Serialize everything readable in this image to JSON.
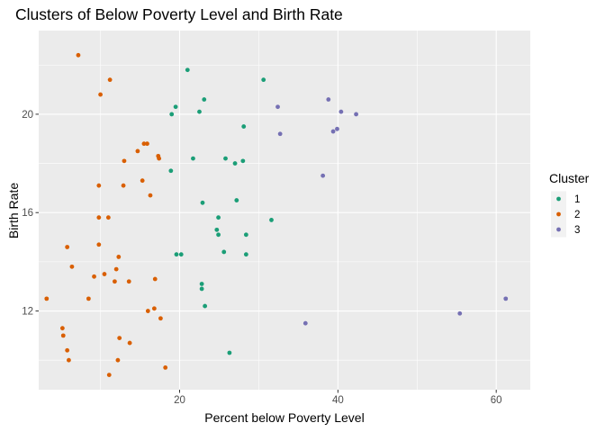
{
  "chart_data": {
    "type": "scatter",
    "title": "Clusters of Below Poverty Level and Birth Rate",
    "xlabel": "Percent below Poverty Level",
    "ylabel": "Birth Rate",
    "xlim": [
      2.2,
      64.3
    ],
    "ylim": [
      8.8,
      23.4
    ],
    "x_ticks": [
      20,
      40,
      60
    ],
    "y_ticks": [
      12,
      16,
      20
    ],
    "x_tick_labels": [
      "20",
      "40",
      "60"
    ],
    "y_tick_labels": [
      "12",
      "16",
      "20"
    ],
    "grid": true,
    "background": "#EBEBEB",
    "legend": {
      "title": "Cluster",
      "position": "right",
      "entries": [
        {
          "label": "1",
          "color": "#1B9E77"
        },
        {
          "label": "2",
          "color": "#D95F02"
        },
        {
          "label": "3",
          "color": "#7570B3"
        }
      ]
    },
    "series": [
      {
        "name": "1",
        "color": "#1B9E77",
        "points": [
          [
            21.0,
            21.8
          ],
          [
            30.6,
            21.4
          ],
          [
            23.1,
            20.6
          ],
          [
            19.5,
            20.3
          ],
          [
            22.5,
            20.1
          ],
          [
            19.0,
            20.0
          ],
          [
            28.1,
            19.5
          ],
          [
            21.7,
            18.2
          ],
          [
            25.8,
            18.2
          ],
          [
            28.0,
            18.1
          ],
          [
            27.0,
            18.0
          ],
          [
            18.9,
            17.7
          ],
          [
            27.2,
            16.5
          ],
          [
            22.9,
            16.4
          ],
          [
            24.9,
            15.8
          ],
          [
            31.6,
            15.7
          ],
          [
            24.7,
            15.3
          ],
          [
            24.9,
            15.1
          ],
          [
            28.4,
            15.1
          ],
          [
            25.6,
            14.4
          ],
          [
            19.6,
            14.3
          ],
          [
            20.2,
            14.3
          ],
          [
            28.4,
            14.3
          ],
          [
            22.8,
            13.1
          ],
          [
            22.8,
            12.9
          ],
          [
            23.2,
            12.2
          ],
          [
            26.3,
            10.3
          ]
        ]
      },
      {
        "name": "2",
        "color": "#D95F02",
        "points": [
          [
            7.2,
            22.4
          ],
          [
            11.2,
            21.4
          ],
          [
            10.0,
            20.8
          ],
          [
            15.5,
            18.8
          ],
          [
            15.9,
            18.8
          ],
          [
            14.7,
            18.5
          ],
          [
            17.3,
            18.3
          ],
          [
            17.4,
            18.2
          ],
          [
            13.0,
            18.1
          ],
          [
            15.3,
            17.3
          ],
          [
            12.9,
            17.1
          ],
          [
            9.8,
            17.1
          ],
          [
            16.3,
            16.7
          ],
          [
            9.8,
            15.8
          ],
          [
            11.0,
            15.8
          ],
          [
            5.8,
            14.6
          ],
          [
            9.8,
            14.7
          ],
          [
            12.3,
            14.2
          ],
          [
            6.4,
            13.8
          ],
          [
            12.0,
            13.7
          ],
          [
            10.5,
            13.5
          ],
          [
            9.2,
            13.4
          ],
          [
            16.9,
            13.3
          ],
          [
            13.6,
            13.2
          ],
          [
            11.8,
            13.2
          ],
          [
            3.2,
            12.5
          ],
          [
            8.5,
            12.5
          ],
          [
            16.8,
            12.1
          ],
          [
            16.0,
            12.0
          ],
          [
            17.6,
            11.7
          ],
          [
            5.2,
            11.3
          ],
          [
            5.3,
            11.0
          ],
          [
            12.4,
            10.9
          ],
          [
            13.7,
            10.7
          ],
          [
            5.8,
            10.4
          ],
          [
            6.0,
            10.0
          ],
          [
            12.2,
            10.0
          ],
          [
            18.2,
            9.7
          ],
          [
            11.1,
            9.4
          ]
        ]
      },
      {
        "name": "3",
        "color": "#7570B3",
        "points": [
          [
            38.8,
            20.6
          ],
          [
            32.4,
            20.3
          ],
          [
            40.4,
            20.1
          ],
          [
            42.3,
            20.0
          ],
          [
            39.9,
            19.4
          ],
          [
            39.4,
            19.3
          ],
          [
            32.7,
            19.2
          ],
          [
            38.1,
            17.5
          ],
          [
            61.2,
            12.5
          ],
          [
            55.4,
            11.9
          ],
          [
            35.9,
            11.5
          ]
        ]
      }
    ]
  }
}
